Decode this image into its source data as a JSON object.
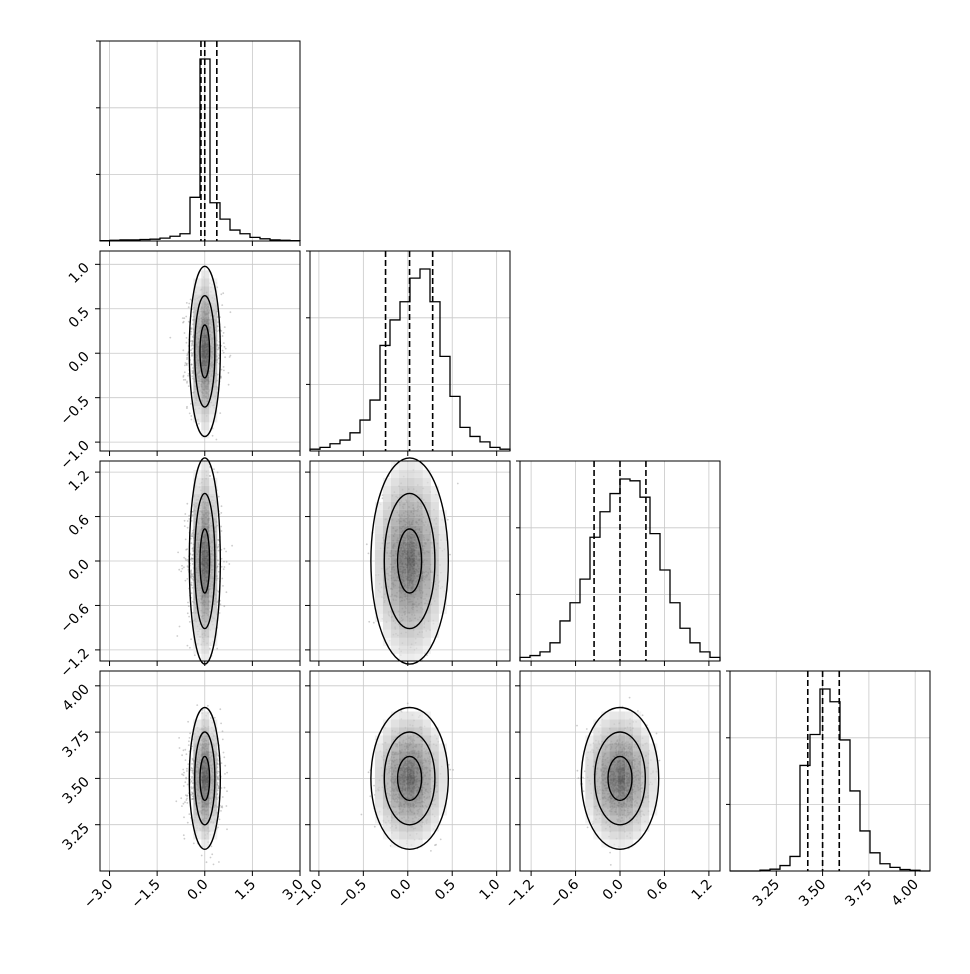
{
  "chart_data": {
    "type": "corner",
    "grid": true,
    "parameters": [
      {
        "index": 0,
        "range": [
          -3.3,
          3.0
        ],
        "ticks": [
          -3.0,
          -1.5,
          0.0,
          1.5,
          3.0
        ],
        "tick_labels": [
          "−3.0",
          "−1.5",
          "0.0",
          "1.5",
          "3.0"
        ],
        "quantiles": [
          -0.12,
          0.0,
          0.38
        ],
        "hist": [
          0.002,
          0.004,
          0.006,
          0.006,
          0.008,
          0.01,
          0.016,
          0.026,
          0.04,
          0.24,
          1.0,
          0.21,
          0.12,
          0.06,
          0.04,
          0.02,
          0.012,
          0.006,
          0.004,
          0.002
        ],
        "ellipses": {
          "sx": [
            0.06,
            0.17,
            0.28
          ],
          "sy": [
            0.06,
            0.17,
            0.28
          ]
        }
      },
      {
        "index": 1,
        "range": [
          -1.1,
          1.15
        ],
        "ticks": [
          -1.0,
          -0.5,
          0.0,
          0.5,
          1.0
        ],
        "tick_labels": [
          "−1.0",
          "−0.5",
          "0.0",
          "0.5",
          "1.0"
        ],
        "quantiles": [
          -0.25,
          0.02,
          0.28
        ],
        "hist": [
          0.01,
          0.02,
          0.04,
          0.06,
          0.1,
          0.17,
          0.28,
          0.58,
          0.72,
          0.82,
          0.95,
          1.0,
          0.82,
          0.52,
          0.3,
          0.13,
          0.08,
          0.05,
          0.02,
          0.01
        ],
        "ellipses": {
          "sx": [
            0.07,
            0.15,
            0.25
          ],
          "sy": [
            0.12,
            0.3,
            0.55
          ]
        }
      },
      {
        "index": 2,
        "range": [
          -1.35,
          1.35
        ],
        "ticks": [
          -1.2,
          -0.6,
          0.0,
          0.6,
          1.2
        ],
        "tick_labels": [
          "−1.2",
          "−0.6",
          "0.0",
          "0.6",
          "1.2"
        ],
        "quantiles": [
          -0.35,
          0.0,
          0.35
        ],
        "hist": [
          0.02,
          0.03,
          0.05,
          0.1,
          0.22,
          0.32,
          0.45,
          0.68,
          0.82,
          0.92,
          1.0,
          0.99,
          0.9,
          0.7,
          0.5,
          0.32,
          0.18,
          0.1,
          0.05,
          0.02
        ],
        "ellipses": {
          "sx": [
            0.08,
            0.18,
            0.3
          ],
          "sy": [
            0.15,
            0.45,
            0.8
          ]
        }
      },
      {
        "index": 3,
        "range": [
          3.0,
          4.08
        ],
        "ticks": [
          3.25,
          3.5,
          3.75,
          4.0
        ],
        "tick_labels": [
          "3.25",
          "3.50",
          "3.75",
          "4.00"
        ],
        "quantiles": [
          3.42,
          3.5,
          3.59
        ],
        "hist": [
          0.0,
          0.0,
          0.0,
          0.005,
          0.01,
          0.03,
          0.08,
          0.58,
          0.75,
          1.0,
          0.93,
          0.72,
          0.44,
          0.22,
          0.1,
          0.04,
          0.02,
          0.008,
          0.004,
          0.0
        ],
        "ellipses": {
          "sx": [
            0.05,
            0.1,
            0.15
          ],
          "sy": [
            0.07,
            0.14,
            0.22
          ]
        }
      }
    ]
  }
}
